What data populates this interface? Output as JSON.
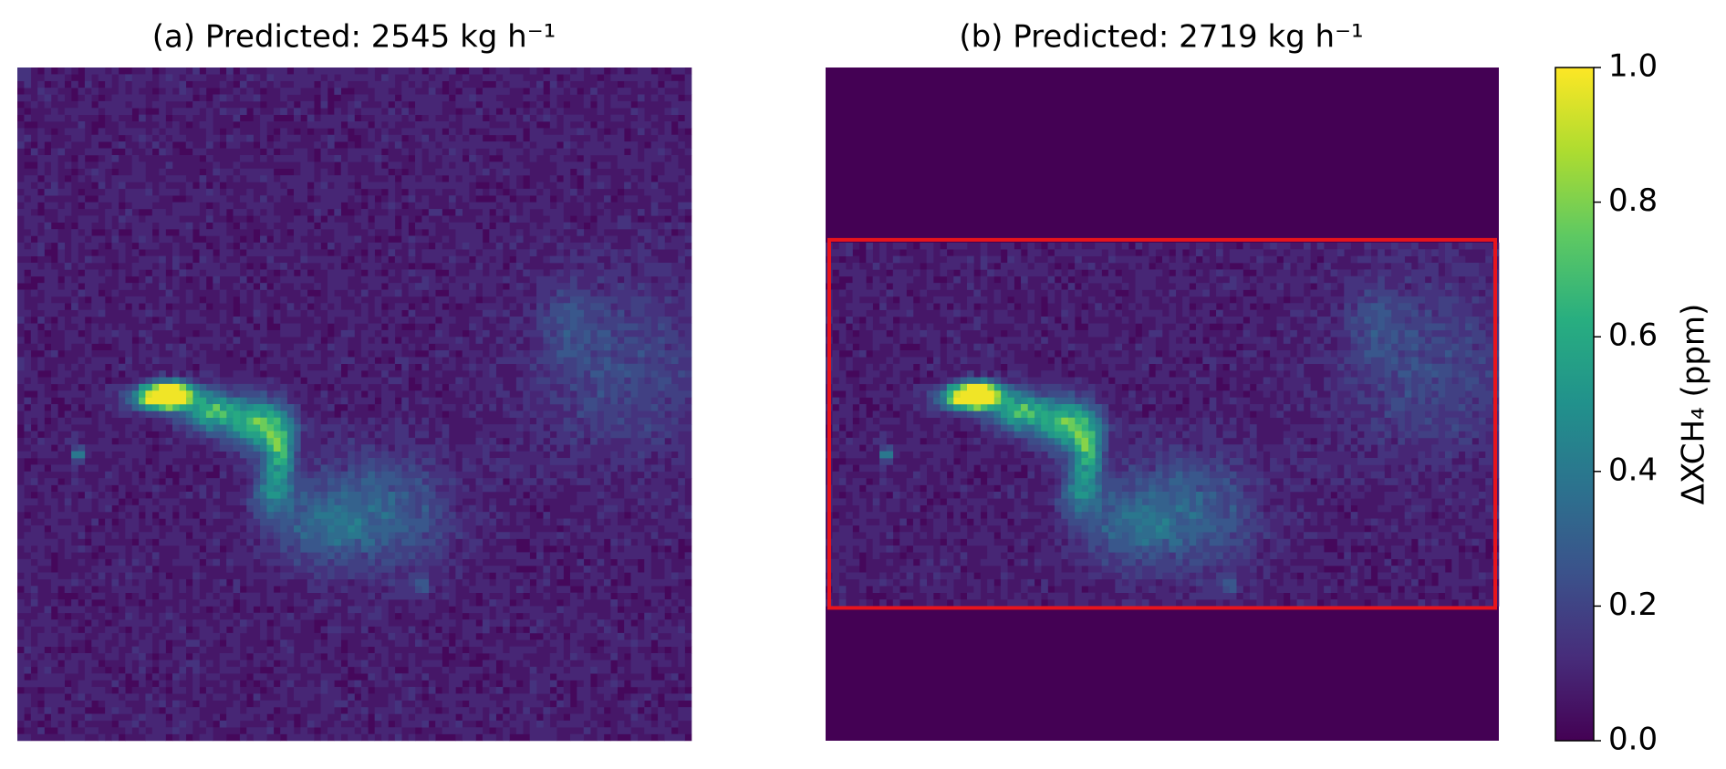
{
  "chart_data": [
    {
      "type": "heatmap",
      "title": "(a) Predicted: 2545 kg h⁻¹"
    },
    {
      "type": "heatmap",
      "title": "(b) Predicted: 2719 kg h⁻¹",
      "highlight_color": "#e8141c"
    }
  ],
  "colorbar": {
    "label": "ΔXCH₄ (ppm)",
    "lim": [
      0,
      1
    ],
    "ticks": [
      {
        "value": 0,
        "label": "0.0"
      },
      {
        "value": 0.2,
        "label": "0.2"
      },
      {
        "value": 0.4,
        "label": "0.4"
      },
      {
        "value": 0.6,
        "label": "0.6"
      },
      {
        "value": 0.8,
        "label": "0.8"
      },
      {
        "value": 1,
        "label": "1.0"
      }
    ],
    "colormap": "viridis"
  }
}
